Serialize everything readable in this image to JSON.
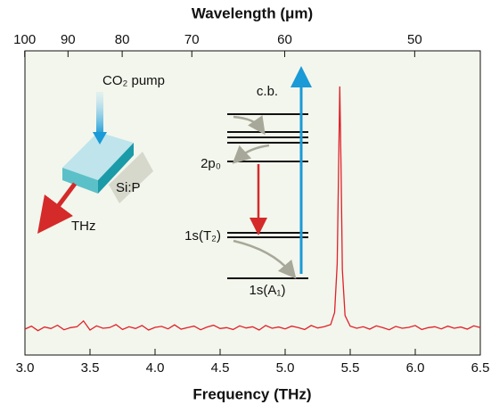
{
  "chart_data": {
    "type": "line",
    "xlabel": "Frequency (THz)",
    "x2label": "Wavelength (μm)",
    "xlim": [
      3.0,
      6.5
    ],
    "xticks": [
      {
        "value": 3,
        "label": "3.0"
      },
      3.5,
      {
        "value": 4,
        "label": "4.0"
      },
      4.5,
      {
        "value": 5,
        "label": "5.0"
      },
      5.5,
      {
        "value": 6,
        "label": "6.0"
      },
      6.5
    ],
    "x2scale": "reciprocal",
    "x2lim": [
      99.93,
      46.12
    ],
    "x2ticks": [
      100,
      90,
      80,
      70,
      60,
      50
    ],
    "ylim": [
      0,
      1
    ],
    "background": "#f3f6ec",
    "x": [
      3.0,
      3.05,
      3.1,
      3.15,
      3.2,
      3.25,
      3.3,
      3.35,
      3.4,
      3.45,
      3.5,
      3.55,
      3.6,
      3.65,
      3.7,
      3.75,
      3.8,
      3.85,
      3.9,
      3.95,
      4.0,
      4.05,
      4.1,
      4.15,
      4.2,
      4.25,
      4.3,
      4.35,
      4.4,
      4.45,
      4.5,
      4.55,
      4.6,
      4.65,
      4.7,
      4.75,
      4.8,
      4.85,
      4.9,
      4.95,
      5.0,
      5.05,
      5.1,
      5.15,
      5.2,
      5.25,
      5.3,
      5.35,
      5.38,
      5.4,
      5.41,
      5.42,
      5.43,
      5.44,
      5.46,
      5.5,
      5.55,
      5.6,
      5.65,
      5.7,
      5.75,
      5.8,
      5.85,
      5.9,
      5.95,
      6.0,
      6.05,
      6.1,
      6.15,
      6.2,
      6.25,
      6.3,
      6.35,
      6.4,
      6.45,
      6.5
    ],
    "series": [
      {
        "color": "#e0202a",
        "values": [
          0.085,
          0.095,
          0.08,
          0.092,
          0.087,
          0.098,
          0.083,
          0.09,
          0.093,
          0.112,
          0.082,
          0.096,
          0.088,
          0.09,
          0.1,
          0.084,
          0.093,
          0.087,
          0.097,
          0.082,
          0.091,
          0.094,
          0.086,
          0.099,
          0.085,
          0.09,
          0.095,
          0.083,
          0.092,
          0.098,
          0.087,
          0.09,
          0.084,
          0.096,
          0.089,
          0.093,
          0.082,
          0.097,
          0.088,
          0.092,
          0.086,
          0.095,
          0.09,
          0.084,
          0.097,
          0.089,
          0.093,
          0.1,
          0.14,
          0.3,
          0.6,
          0.883,
          0.6,
          0.28,
          0.13,
          0.095,
          0.088,
          0.093,
          0.085,
          0.096,
          0.09,
          0.083,
          0.094,
          0.088,
          0.091,
          0.097,
          0.084,
          0.09,
          0.093,
          0.086,
          0.095,
          0.088,
          0.092,
          0.085,
          0.096,
          0.09
        ]
      }
    ],
    "annotations": [
      "CO₂ pump",
      "Si:P",
      "THz",
      "c.b.",
      "2p₀",
      "1s(T₂)",
      "1s(A₁)"
    ]
  }
}
